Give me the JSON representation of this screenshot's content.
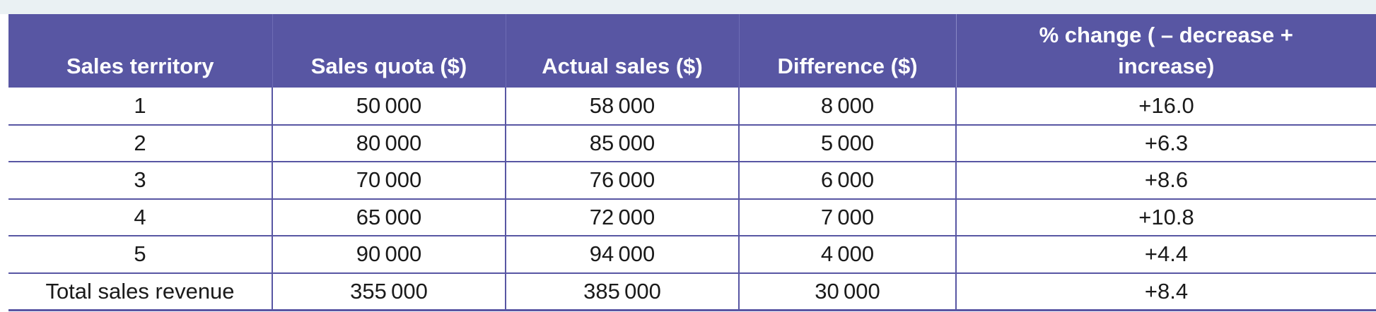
{
  "table": {
    "headers": [
      "Sales territory",
      "Sales quota ($)",
      "Actual sales ($)",
      "Difference ($)",
      "% change ( – decrease + increase)"
    ],
    "rows": [
      [
        "1",
        "50 000",
        "58 000",
        "8 000",
        "+16.0"
      ],
      [
        "2",
        "80 000",
        "85 000",
        "5 000",
        "+6.3"
      ],
      [
        "3",
        "70 000",
        "76 000",
        "6 000",
        "+8.6"
      ],
      [
        "4",
        "65 000",
        "72 000",
        "7 000",
        "+10.8"
      ],
      [
        "5",
        "90 000",
        "94 000",
        "4 000",
        "+4.4"
      ],
      [
        "Total sales revenue",
        "355 000",
        "385 000",
        "30 000",
        "+8.4"
      ]
    ]
  },
  "colors": {
    "header_background": "#5856a3",
    "header_text": "#ffffff",
    "grid_lines": "#5856a3",
    "top_band": "#eaf1f3"
  }
}
